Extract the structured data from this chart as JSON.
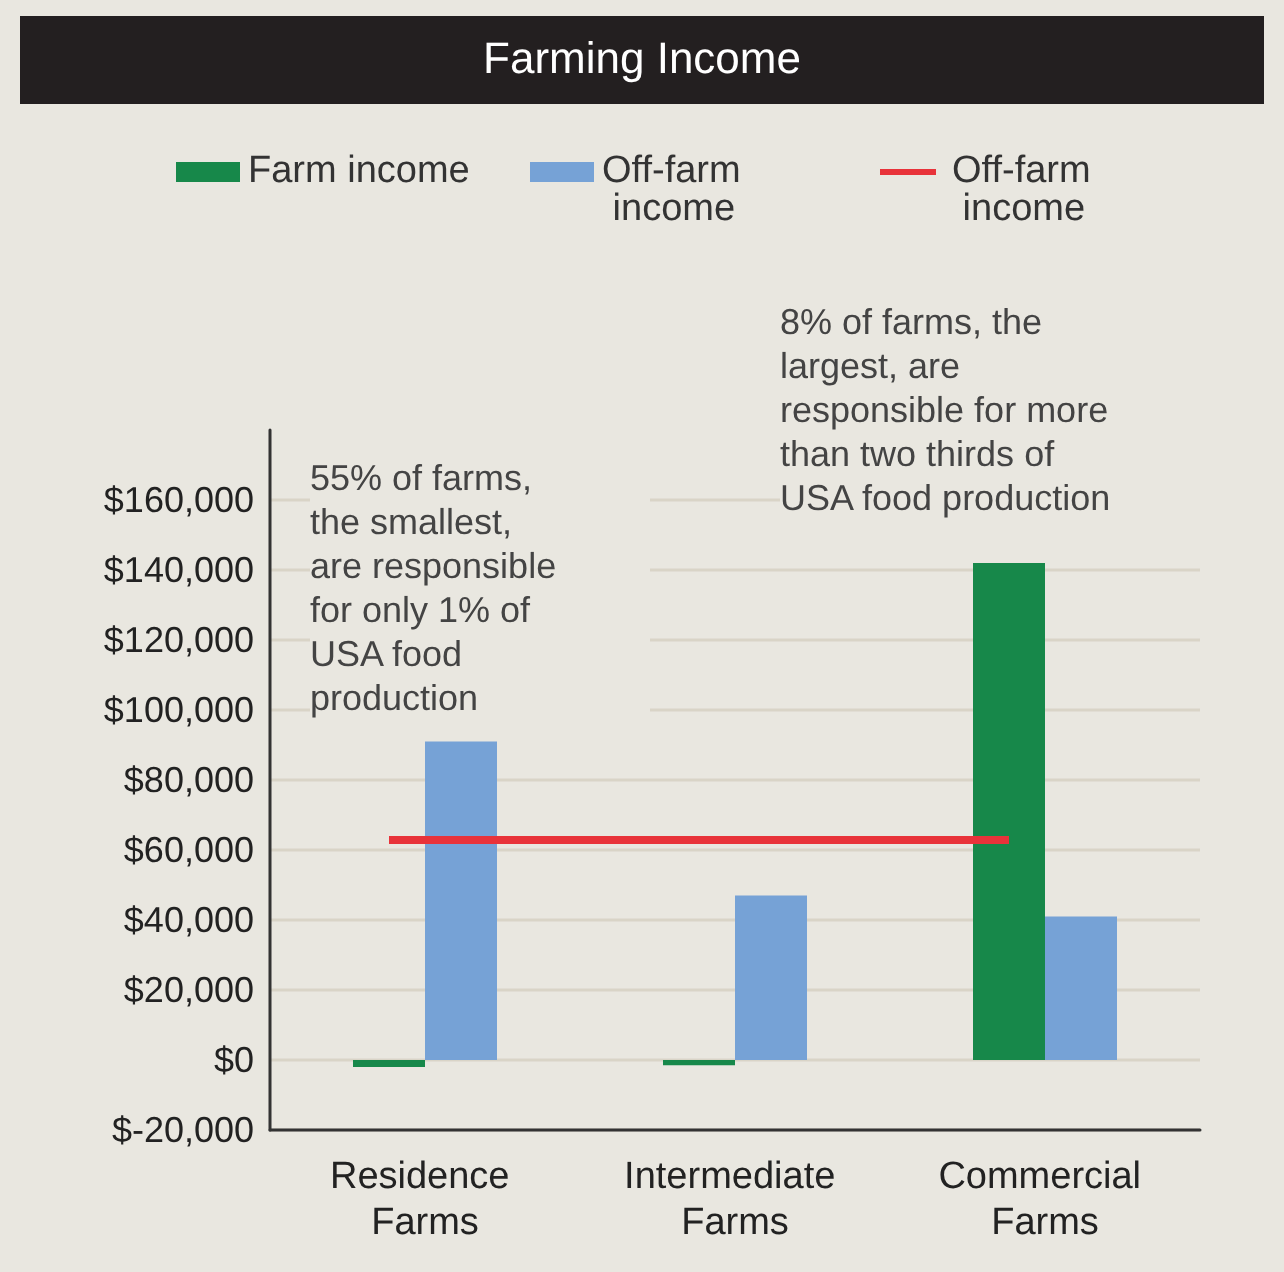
{
  "chart_data": {
    "type": "bar",
    "title": "Farming Income",
    "categories": [
      "Residence Farms",
      "Intermediate Farms",
      "Commercial Farms"
    ],
    "series": [
      {
        "name": "Farm income",
        "color": "#17884a",
        "values": [
          -2000,
          -1500,
          142000
        ]
      },
      {
        "name": "Off-farm income",
        "color": "#76a2d6",
        "values": [
          91000,
          47000,
          41000
        ]
      }
    ],
    "ref_lines": [
      {
        "axis": "y",
        "value": 63000,
        "label": "Off-farm income",
        "color": "#e8333a"
      }
    ],
    "ylim": [
      -20000,
      180000
    ],
    "yticks": [
      {
        "value": -20000,
        "label": "$-20,000"
      },
      {
        "value": 0,
        "label": "$0"
      },
      {
        "value": 20000,
        "label": "$20,000"
      },
      {
        "value": 40000,
        "label": "$40,000"
      },
      {
        "value": 60000,
        "label": "$60,000"
      },
      {
        "value": 80000,
        "label": "$80,000"
      },
      {
        "value": 100000,
        "label": "$100,000"
      },
      {
        "value": 120000,
        "label": "$120,000"
      },
      {
        "value": 140000,
        "label": "$140,000"
      },
      {
        "value": 160000,
        "label": "$160,000"
      }
    ],
    "grid": "y",
    "legend": "top",
    "annotations": [
      "55% of farms, the smallest, are responsible for only 1% of USA food production",
      "8% of farms, the largest, are responsible for more than two thirds of USA food production"
    ]
  }
}
